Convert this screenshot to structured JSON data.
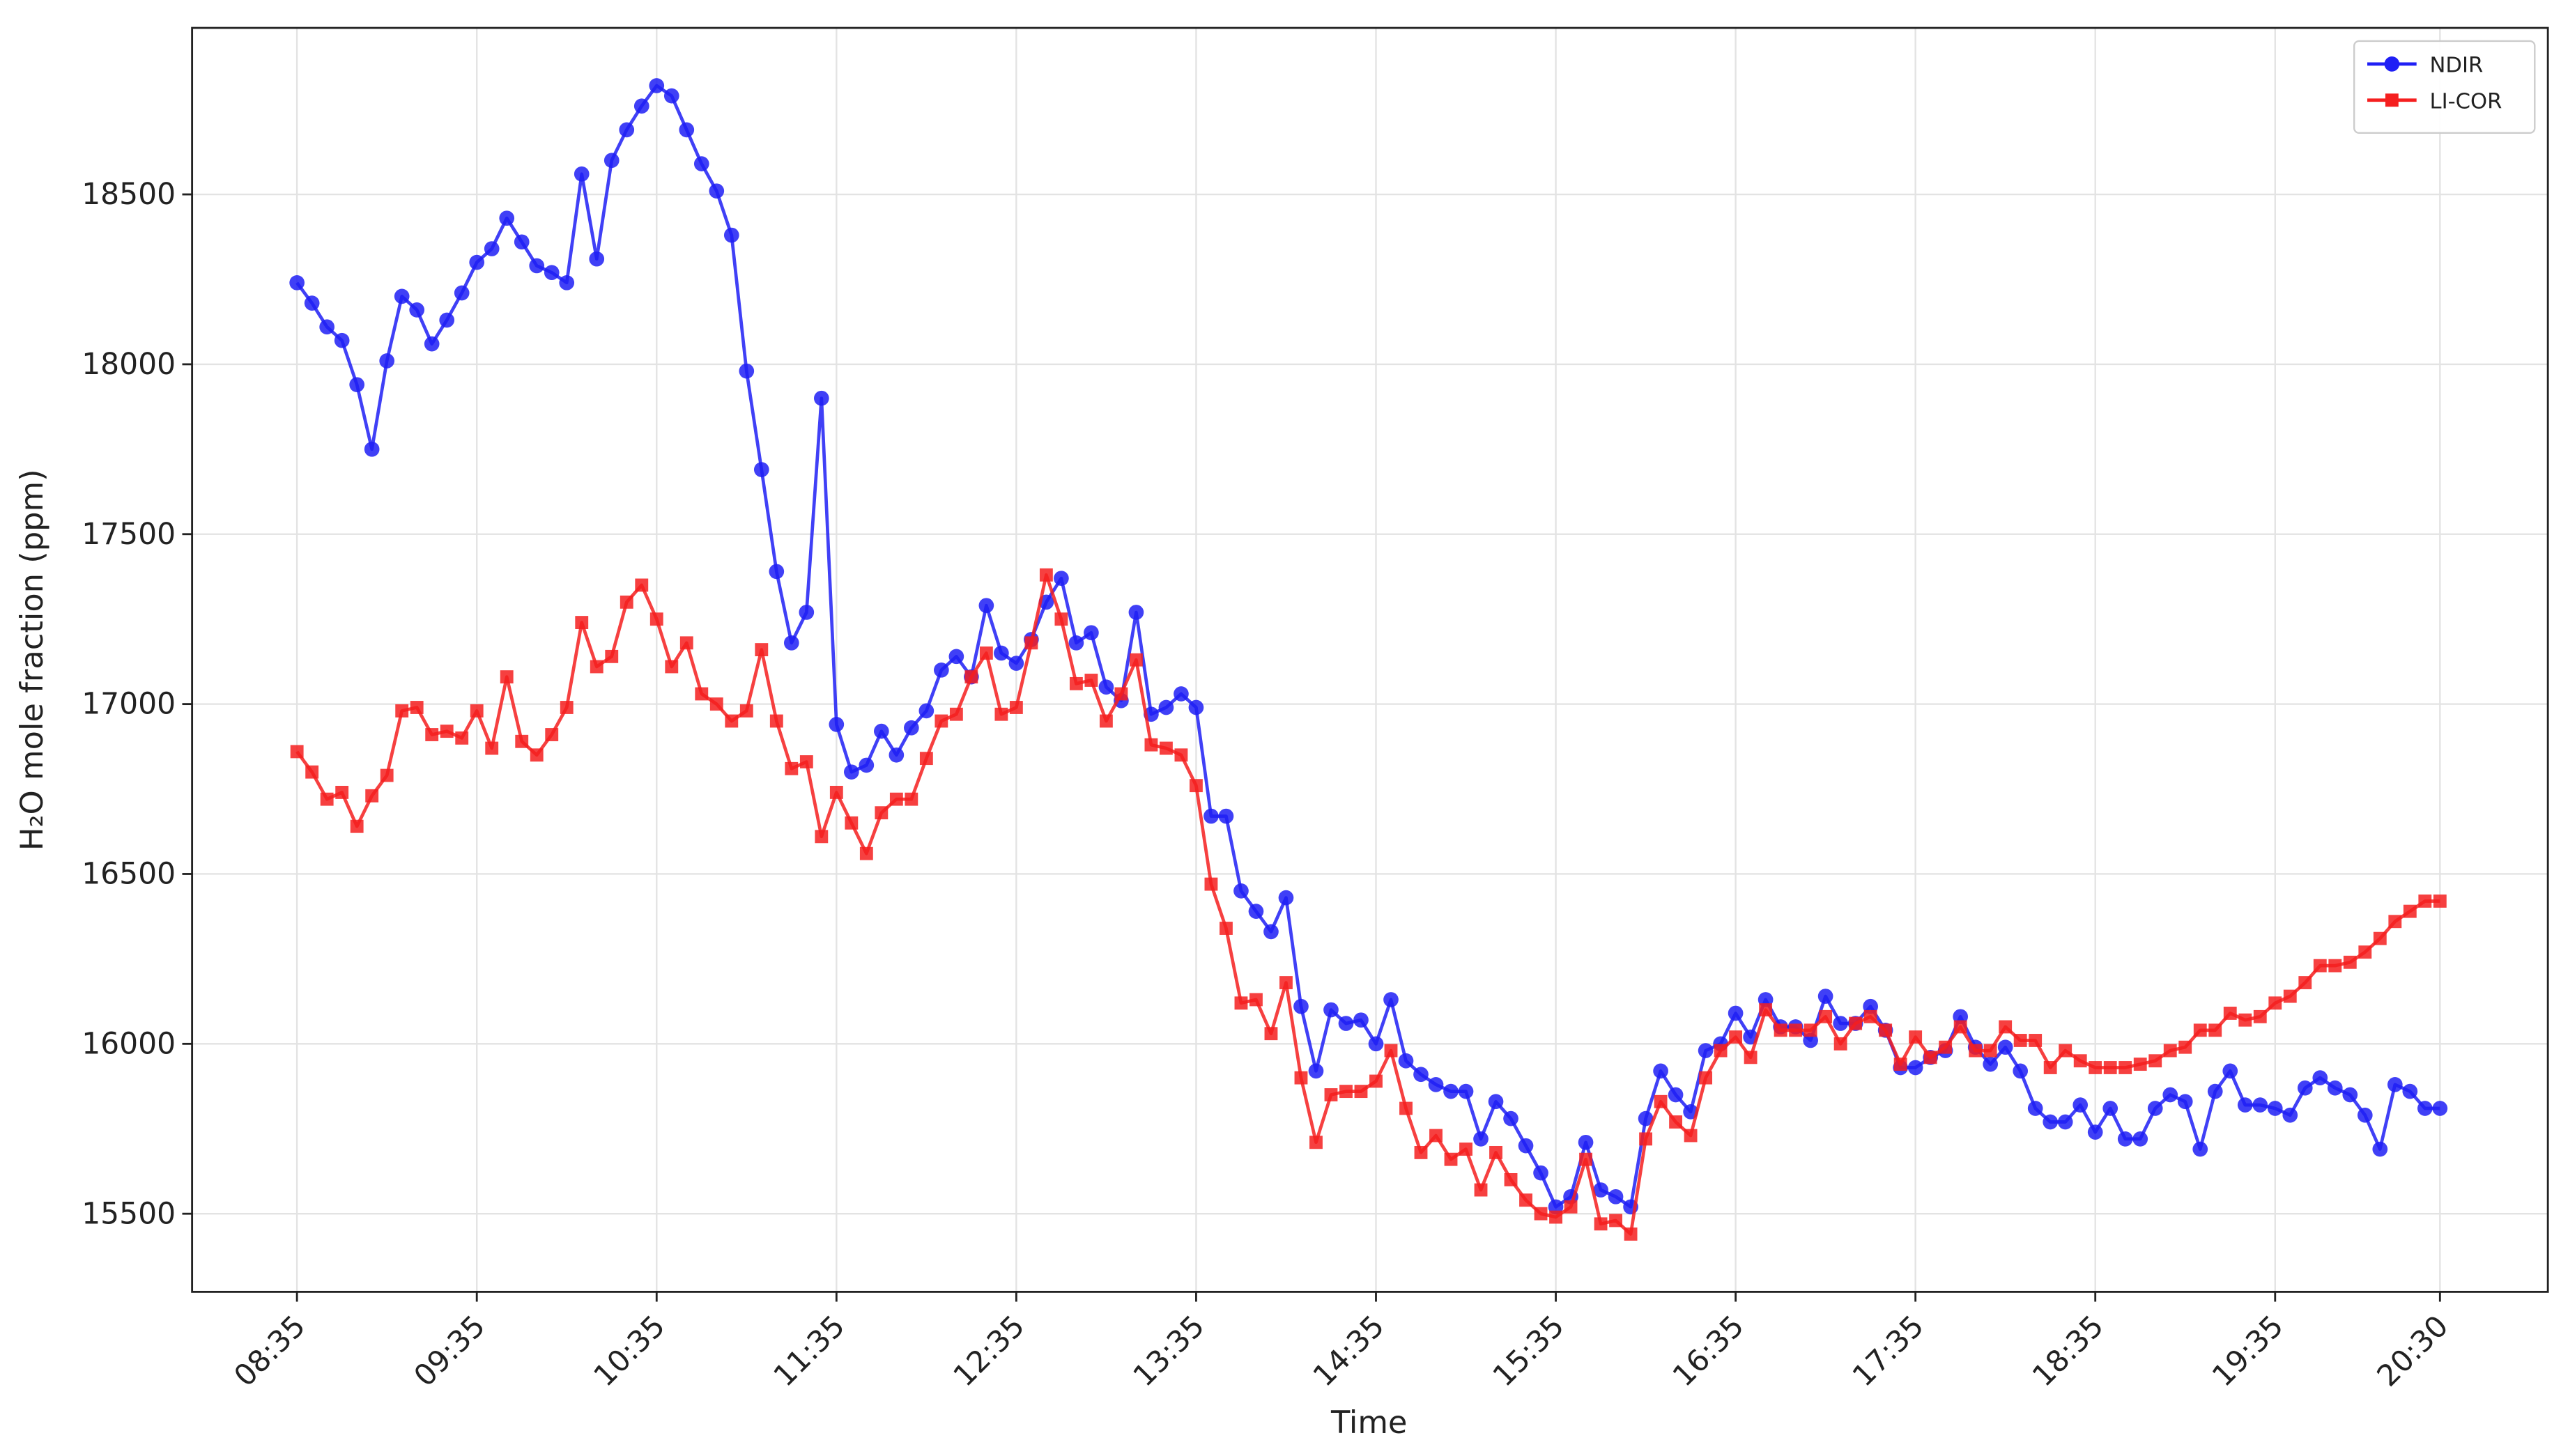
{
  "chart_data": {
    "type": "line",
    "xlabel": "Time",
    "ylabel": "H₂O mole fraction (ppm)",
    "x": [
      "08:35",
      "08:40",
      "08:45",
      "08:50",
      "08:55",
      "09:00",
      "09:05",
      "09:10",
      "09:15",
      "09:20",
      "09:25",
      "09:30",
      "09:35",
      "09:40",
      "09:45",
      "09:50",
      "09:55",
      "10:00",
      "10:05",
      "10:10",
      "10:15",
      "10:20",
      "10:25",
      "10:30",
      "10:35",
      "10:40",
      "10:45",
      "10:50",
      "10:55",
      "11:00",
      "11:05",
      "11:10",
      "11:15",
      "11:20",
      "11:25",
      "11:30",
      "11:35",
      "11:40",
      "11:45",
      "11:50",
      "11:55",
      "12:00",
      "12:05",
      "12:10",
      "12:15",
      "12:20",
      "12:25",
      "12:30",
      "12:35",
      "12:40",
      "12:45",
      "12:50",
      "12:55",
      "13:00",
      "13:05",
      "13:10",
      "13:15",
      "13:20",
      "13:25",
      "13:30",
      "13:35",
      "13:40",
      "13:45",
      "13:50",
      "13:55",
      "14:00",
      "14:05",
      "14:10",
      "14:15",
      "14:20",
      "14:25",
      "14:30",
      "14:35",
      "14:40",
      "14:45",
      "14:50",
      "14:55",
      "15:00",
      "15:05",
      "15:10",
      "15:15",
      "15:20",
      "15:25",
      "15:30",
      "15:35",
      "15:40",
      "15:45",
      "15:50",
      "15:55",
      "16:00",
      "16:05",
      "16:10",
      "16:15",
      "16:20",
      "16:25",
      "16:30",
      "16:35",
      "16:40",
      "16:45",
      "16:50",
      "16:55",
      "17:00",
      "17:05",
      "17:10",
      "17:15",
      "17:20",
      "17:25",
      "17:30",
      "17:35",
      "17:40",
      "17:45",
      "17:50",
      "17:55",
      "18:00",
      "18:05",
      "18:10",
      "18:15",
      "18:20",
      "18:25",
      "18:30",
      "18:35",
      "18:40",
      "18:45",
      "18:50",
      "18:55",
      "19:00",
      "19:05",
      "19:10",
      "19:15",
      "19:20",
      "19:25",
      "19:30",
      "19:35",
      "19:40",
      "19:45",
      "19:50",
      "19:55",
      "20:00",
      "20:05",
      "20:10",
      "20:15",
      "20:20",
      "20:25",
      "20:30"
    ],
    "series": [
      {
        "name": "NDIR",
        "color": "#1f1ff5",
        "marker": "circle",
        "values": [
          18240,
          18180,
          18110,
          18070,
          17940,
          17750,
          18010,
          18200,
          18160,
          18060,
          18130,
          18210,
          18300,
          18340,
          18430,
          18360,
          18290,
          18270,
          18240,
          18560,
          18310,
          18600,
          18690,
          18760,
          18820,
          18790,
          18690,
          18590,
          18510,
          18380,
          17980,
          17690,
          17390,
          17180,
          17270,
          17900,
          16940,
          16800,
          16820,
          16920,
          16850,
          16930,
          16980,
          17100,
          17140,
          17080,
          17290,
          17150,
          17120,
          17190,
          17300,
          17370,
          17180,
          17210,
          17050,
          17010,
          17270,
          16970,
          16990,
          17030,
          16990,
          16670,
          16670,
          16450,
          16390,
          16330,
          16430,
          16110,
          15920,
          16100,
          16060,
          16070,
          16000,
          16130,
          15950,
          15910,
          15880,
          15860,
          15860,
          15720,
          15830,
          15780,
          15700,
          15620,
          15520,
          15550,
          15710,
          15570,
          15550,
          15520,
          15780,
          15920,
          15850,
          15800,
          15980,
          16000,
          16090,
          16020,
          16130,
          16050,
          16050,
          16010,
          16140,
          16060,
          16060,
          16110,
          16040,
          15930,
          15930,
          15960,
          15980,
          16080,
          15990,
          15940,
          15990,
          15920,
          15810,
          15770,
          15770,
          15820,
          15740,
          15810,
          15720,
          15720,
          15810,
          15850,
          15830,
          15690,
          15860,
          15920,
          15820,
          15820,
          15810,
          15790,
          15870,
          15900,
          15870,
          15850,
          15790,
          15690,
          15880,
          15860,
          15810,
          15810
        ]
      },
      {
        "name": "LI-COR",
        "color": "#f51f1f",
        "marker": "square",
        "values": [
          16860,
          16800,
          16720,
          16740,
          16640,
          16730,
          16790,
          16980,
          16990,
          16910,
          16920,
          16900,
          16980,
          16870,
          17080,
          16890,
          16850,
          16910,
          16990,
          17240,
          17110,
          17140,
          17300,
          17350,
          17250,
          17110,
          17180,
          17030,
          17000,
          16950,
          16980,
          17160,
          16950,
          16810,
          16830,
          16610,
          16740,
          16650,
          16560,
          16680,
          16720,
          16720,
          16840,
          16950,
          16970,
          17080,
          17150,
          16970,
          16990,
          17180,
          17380,
          17250,
          17060,
          17070,
          16950,
          17030,
          17130,
          16880,
          16870,
          16850,
          16760,
          16470,
          16340,
          16120,
          16130,
          16030,
          16180,
          15900,
          15710,
          15850,
          15860,
          15860,
          15890,
          15980,
          15810,
          15680,
          15730,
          15660,
          15690,
          15570,
          15680,
          15600,
          15540,
          15500,
          15490,
          15520,
          15660,
          15470,
          15480,
          15440,
          15720,
          15830,
          15770,
          15730,
          15900,
          15980,
          16020,
          15960,
          16100,
          16040,
          16040,
          16040,
          16080,
          16000,
          16060,
          16080,
          16040,
          15940,
          16020,
          15960,
          15990,
          16050,
          15980,
          15980,
          16050,
          16010,
          16010,
          15930,
          15980,
          15950,
          15930,
          15930,
          15930,
          15940,
          15950,
          15980,
          15990,
          16040,
          16040,
          16090,
          16070,
          16080,
          16120,
          16140,
          16180,
          16230,
          16230,
          16240,
          16270,
          16310,
          16360,
          16390,
          16420,
          16420
        ]
      }
    ],
    "xlim": [
      "08:00",
      "21:06"
    ],
    "xticks": [
      "08:35",
      "09:35",
      "10:35",
      "11:35",
      "12:35",
      "13:35",
      "14:35",
      "15:35",
      "16:35",
      "17:35",
      "18:35",
      "19:35",
      "20:30"
    ],
    "ylim": [
      15270,
      18990
    ],
    "yticks": [
      15500,
      16000,
      16500,
      17000,
      17500,
      18000,
      18500
    ],
    "grid": true,
    "legend": "upper right"
  }
}
